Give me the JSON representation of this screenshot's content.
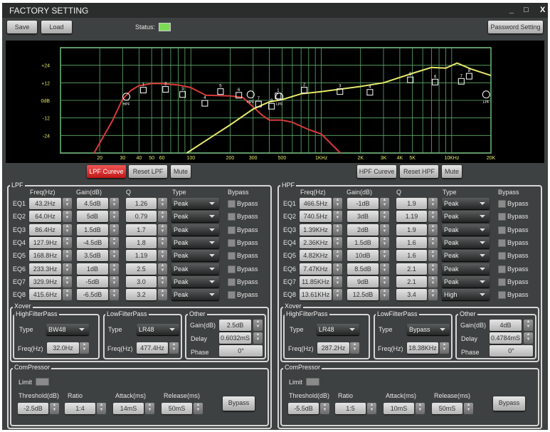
{
  "window": {
    "title": "FACTORY SETTING",
    "minimize": "_",
    "maximize": "□",
    "close": "X"
  },
  "toolbar": {
    "save": "Save",
    "load": "Load",
    "status_label": "Status:",
    "status_color": "#7ed957",
    "password": "Password Setting"
  },
  "graph_buttons": {
    "lpf_curve": "LPF Cureve",
    "reset_lpf": "Reset LPF",
    "mute_lpf": "Mute",
    "hpf_curve": "HPF Cureve",
    "reset_hpf": "Reset HPF",
    "mute_hpf": "Mute"
  },
  "columns": {
    "freq": "Freq(Hz)",
    "gain": "Gain(dB)",
    "q": "Q",
    "type": "Type",
    "bypass": "Bypass",
    "bypass_cb": "Bypass"
  },
  "labels": {
    "xover": "Xover",
    "hfp": "HighFilterPass",
    "lfp": "LowFilterPass",
    "other": "Other",
    "type": "Type",
    "freq": "Freq(Hz)",
    "gain": "Gain(dB)",
    "delay": "Delay",
    "phase": "Phase",
    "compressor": "ComPressor",
    "limit": "Limit",
    "threshold": "Threshold(dB)",
    "ratio": "Ratio",
    "attack": "Attack(ms)",
    "release": "Release(ms)",
    "bypass": "Bypass"
  },
  "sides": [
    {
      "title": "LPF",
      "eq": [
        {
          "name": "EQ1",
          "freq": "43.2Hz",
          "gain": "4.5dB",
          "q": "1.26",
          "type": "Peak",
          "f": 43.2,
          "g": 4.5
        },
        {
          "name": "EQ2",
          "freq": "64.0Hz",
          "gain": "5dB",
          "q": "0.79",
          "type": "Peak",
          "f": 64,
          "g": 5
        },
        {
          "name": "EQ3",
          "freq": "86.4Hz",
          "gain": "1.5dB",
          "q": "1.7",
          "type": "Peak",
          "f": 86.4,
          "g": 1.5
        },
        {
          "name": "EQ4",
          "freq": "127.9Hz",
          "gain": "-4.5dB",
          "q": "1.8",
          "type": "Peak",
          "f": 127.9,
          "g": -4.5
        },
        {
          "name": "EQ5",
          "freq": "168.8Hz",
          "gain": "3.5dB",
          "q": "1.19",
          "type": "Peak",
          "f": 168.8,
          "g": 3.5
        },
        {
          "name": "EQ6",
          "freq": "233.3Hz",
          "gain": "1dB",
          "q": "2.5",
          "type": "Peak",
          "f": 233.3,
          "g": 1
        },
        {
          "name": "EQ7",
          "freq": "329.9Hz",
          "gain": "-5dB",
          "q": "3.0",
          "type": "Peak",
          "f": 329.9,
          "g": -5
        },
        {
          "name": "EQ8",
          "freq": "415.6Hz",
          "gain": "-6.5dB",
          "q": "3.2",
          "type": "Peak",
          "f": 415.6,
          "g": -6.5
        }
      ],
      "xover": {
        "hfp_type": "BW48",
        "hfp_freq": "32.0Hz",
        "hfp_f": 32,
        "lfp_type": "LR48",
        "lfp_freq": "477.4Hz",
        "lfp_f": 477.4,
        "gain": "2.5dB",
        "gain_db": 2.5,
        "delay": "0.6032mS",
        "phase": "0°"
      },
      "compressor": {
        "threshold": "-2.5dB",
        "ratio": "1:4",
        "attack": "14mS",
        "release": "50mS"
      }
    },
    {
      "title": "HPF",
      "eq": [
        {
          "name": "EQ1",
          "freq": "466.5Hz",
          "gain": "-1dB",
          "q": "1.9",
          "type": "Peak",
          "f": 466.5,
          "g": -1
        },
        {
          "name": "EQ2",
          "freq": "740.5Hz",
          "gain": "3dB",
          "q": "1.19",
          "type": "Peak",
          "f": 740.5,
          "g": 3
        },
        {
          "name": "EQ3",
          "freq": "1.39KHz",
          "gain": "2dB",
          "q": "1.9",
          "type": "Peak",
          "f": 1390,
          "g": 2
        },
        {
          "name": "EQ4",
          "freq": "2.36KHz",
          "gain": "1.5dB",
          "q": "1.6",
          "type": "Peak",
          "f": 2360,
          "g": 1.5
        },
        {
          "name": "EQ5",
          "freq": "4.82KHz",
          "gain": "10dB",
          "q": "1.6",
          "type": "Peak",
          "f": 4820,
          "g": 10
        },
        {
          "name": "EQ6",
          "freq": "7.47KHz",
          "gain": "8.5dB",
          "q": "2.1",
          "type": "Peak",
          "f": 7470,
          "g": 8.5
        },
        {
          "name": "EQ7",
          "freq": "11.85KHz",
          "gain": "9dB",
          "q": "2.1",
          "type": "Peak",
          "f": 11850,
          "g": 9
        },
        {
          "name": "EQ8",
          "freq": "13.61KHz",
          "gain": "12.5dB",
          "q": "3.4",
          "type": "High",
          "f": 13610,
          "g": 12.5
        }
      ],
      "xover": {
        "hfp_type": "LR48",
        "hfp_freq": "287.2Hz",
        "hfp_f": 287.2,
        "lfp_type": "Bypass",
        "lfp_freq": "18.38KHz",
        "lfp_f": 18380,
        "gain": "4dB",
        "gain_db": 4,
        "delay": "0.4784mS",
        "phase": "0°"
      },
      "compressor": {
        "threshold": "-5.5dB",
        "ratio": "1:5",
        "attack": "10mS",
        "release": "50mS"
      }
    }
  ],
  "chart_data": {
    "type": "line",
    "xscale": "log",
    "xlim": [
      10,
      20000
    ],
    "ylim": [
      -36,
      36
    ],
    "grid": true,
    "yticks": [
      "+24",
      "+12",
      "0dB",
      "-12",
      "-24"
    ],
    "ytick_values": [
      24,
      12,
      0,
      -12,
      -24
    ],
    "xticks": [
      "20",
      "30",
      "40",
      "50",
      "60",
      "100",
      "200",
      "300",
      "500",
      "1KHz",
      "2K",
      "3K",
      "4K",
      "5K",
      "10KHz",
      "20K"
    ],
    "xtick_values": [
      20,
      30,
      40,
      50,
      60,
      100,
      200,
      300,
      500,
      1000,
      2000,
      3000,
      4000,
      5000,
      10000,
      20000
    ],
    "series": [
      {
        "color": "#d83a3a",
        "points": [
          [
            18.1,
            -36
          ],
          [
            25,
            -14
          ],
          [
            30,
            1
          ],
          [
            35,
            7
          ],
          [
            40,
            10
          ],
          [
            50,
            11.5
          ],
          [
            60,
            11.5
          ],
          [
            80,
            10.5
          ],
          [
            100,
            8.7
          ],
          [
            130,
            3.5
          ],
          [
            200,
            3
          ],
          [
            250,
            2
          ],
          [
            300,
            -4.4
          ],
          [
            350,
            -10
          ],
          [
            400,
            -13.5
          ],
          [
            500,
            -13.5
          ],
          [
            600,
            -15
          ],
          [
            800,
            -20
          ],
          [
            1000,
            -23
          ],
          [
            1400,
            -36
          ]
        ]
      },
      {
        "color": "#e6e86a",
        "points": [
          [
            93,
            -36
          ],
          [
            150,
            -24
          ],
          [
            200,
            -16.8
          ],
          [
            300,
            -6
          ],
          [
            400,
            -1
          ],
          [
            500,
            0.5
          ],
          [
            700,
            4.5
          ],
          [
            1000,
            6
          ],
          [
            2000,
            9.5
          ],
          [
            3000,
            12
          ],
          [
            5000,
            18.5
          ],
          [
            7000,
            22.5
          ],
          [
            9000,
            22
          ],
          [
            11000,
            25.5
          ],
          [
            14000,
            21.5
          ],
          [
            20000,
            17
          ]
        ]
      }
    ]
  }
}
